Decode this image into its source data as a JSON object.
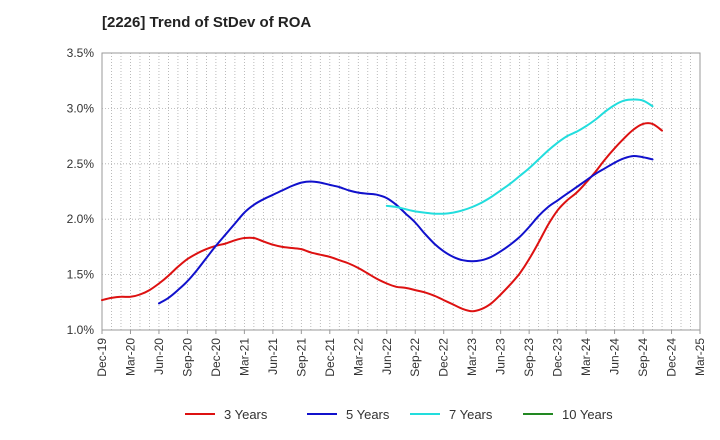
{
  "chart_data": {
    "type": "line",
    "title": "[2226]  Trend of StDev of ROA",
    "xlabel": "",
    "ylabel": "",
    "x_ticks": [
      "Dec-19",
      "Mar-20",
      "Jun-20",
      "Sep-20",
      "Dec-20",
      "Mar-21",
      "Jun-21",
      "Sep-21",
      "Dec-21",
      "Mar-22",
      "Jun-22",
      "Sep-22",
      "Dec-22",
      "Mar-23",
      "Jun-23",
      "Sep-23",
      "Dec-23",
      "Mar-24",
      "Jun-24",
      "Sep-24",
      "Dec-24",
      "Mar-25"
    ],
    "y_ticks": [
      "1.0%",
      "1.5%",
      "2.0%",
      "2.5%",
      "3.0%",
      "3.5%"
    ],
    "ylim": [
      1.0,
      3.5
    ],
    "grid": true,
    "legend_position": "bottom",
    "series": [
      {
        "name": "3 Years",
        "color": "#dd1111",
        "points": [
          [
            "Dec-19",
            1.27
          ],
          [
            "Jan-20",
            1.29
          ],
          [
            "Feb-20",
            1.3
          ],
          [
            "Mar-20",
            1.3
          ],
          [
            "Apr-20",
            1.32
          ],
          [
            "May-20",
            1.36
          ],
          [
            "Jun-20",
            1.42
          ],
          [
            "Jul-20",
            1.49
          ],
          [
            "Aug-20",
            1.57
          ],
          [
            "Sep-20",
            1.64
          ],
          [
            "Oct-20",
            1.69
          ],
          [
            "Nov-20",
            1.73
          ],
          [
            "Dec-20",
            1.76
          ],
          [
            "Jan-21",
            1.78
          ],
          [
            "Feb-21",
            1.81
          ],
          [
            "Mar-21",
            1.83
          ],
          [
            "Apr-21",
            1.83
          ],
          [
            "May-21",
            1.8
          ],
          [
            "Jun-21",
            1.77
          ],
          [
            "Jul-21",
            1.75
          ],
          [
            "Aug-21",
            1.74
          ],
          [
            "Sep-21",
            1.73
          ],
          [
            "Oct-21",
            1.7
          ],
          [
            "Nov-21",
            1.68
          ],
          [
            "Dec-21",
            1.66
          ],
          [
            "Jan-22",
            1.63
          ],
          [
            "Feb-22",
            1.6
          ],
          [
            "Mar-22",
            1.56
          ],
          [
            "Apr-22",
            1.51
          ],
          [
            "May-22",
            1.46
          ],
          [
            "Jun-22",
            1.42
          ],
          [
            "Jul-22",
            1.39
          ],
          [
            "Aug-22",
            1.38
          ],
          [
            "Sep-22",
            1.36
          ],
          [
            "Oct-22",
            1.34
          ],
          [
            "Nov-22",
            1.31
          ],
          [
            "Dec-22",
            1.27
          ],
          [
            "Jan-23",
            1.23
          ],
          [
            "Feb-23",
            1.19
          ],
          [
            "Mar-23",
            1.17
          ],
          [
            "Apr-23",
            1.19
          ],
          [
            "May-23",
            1.24
          ],
          [
            "Jun-23",
            1.32
          ],
          [
            "Jul-23",
            1.41
          ],
          [
            "Aug-23",
            1.51
          ],
          [
            "Sep-23",
            1.64
          ],
          [
            "Oct-23",
            1.79
          ],
          [
            "Nov-23",
            1.95
          ],
          [
            "Dec-23",
            2.08
          ],
          [
            "Jan-24",
            2.17
          ],
          [
            "Feb-24",
            2.24
          ],
          [
            "Mar-24",
            2.33
          ],
          [
            "Apr-24",
            2.43
          ],
          [
            "May-24",
            2.54
          ],
          [
            "Jun-24",
            2.64
          ],
          [
            "Jul-24",
            2.73
          ],
          [
            "Aug-24",
            2.81
          ],
          [
            "Sep-24",
            2.86
          ],
          [
            "Oct-24",
            2.86
          ],
          [
            "Nov-24",
            2.8
          ]
        ]
      },
      {
        "name": "5 Years",
        "color": "#1111cc",
        "points": [
          [
            "Jun-20",
            1.24
          ],
          [
            "Jul-20",
            1.29
          ],
          [
            "Aug-20",
            1.36
          ],
          [
            "Sep-20",
            1.44
          ],
          [
            "Oct-20",
            1.54
          ],
          [
            "Nov-20",
            1.65
          ],
          [
            "Dec-20",
            1.76
          ],
          [
            "Jan-21",
            1.86
          ],
          [
            "Feb-21",
            1.96
          ],
          [
            "Mar-21",
            2.06
          ],
          [
            "Apr-21",
            2.13
          ],
          [
            "May-21",
            2.18
          ],
          [
            "Jun-21",
            2.22
          ],
          [
            "Jul-21",
            2.26
          ],
          [
            "Aug-21",
            2.3
          ],
          [
            "Sep-21",
            2.33
          ],
          [
            "Oct-21",
            2.34
          ],
          [
            "Nov-21",
            2.33
          ],
          [
            "Dec-21",
            2.31
          ],
          [
            "Jan-22",
            2.29
          ],
          [
            "Feb-22",
            2.26
          ],
          [
            "Mar-22",
            2.24
          ],
          [
            "Apr-22",
            2.23
          ],
          [
            "May-22",
            2.22
          ],
          [
            "Jun-22",
            2.19
          ],
          [
            "Jul-22",
            2.13
          ],
          [
            "Aug-22",
            2.05
          ],
          [
            "Sep-22",
            1.97
          ],
          [
            "Oct-22",
            1.87
          ],
          [
            "Nov-22",
            1.78
          ],
          [
            "Dec-22",
            1.71
          ],
          [
            "Jan-23",
            1.66
          ],
          [
            "Feb-23",
            1.63
          ],
          [
            "Mar-23",
            1.62
          ],
          [
            "Apr-23",
            1.63
          ],
          [
            "May-23",
            1.66
          ],
          [
            "Jun-23",
            1.71
          ],
          [
            "Jul-23",
            1.77
          ],
          [
            "Aug-23",
            1.84
          ],
          [
            "Sep-23",
            1.93
          ],
          [
            "Oct-23",
            2.03
          ],
          [
            "Nov-23",
            2.11
          ],
          [
            "Dec-23",
            2.17
          ],
          [
            "Jan-24",
            2.23
          ],
          [
            "Feb-24",
            2.29
          ],
          [
            "Mar-24",
            2.35
          ],
          [
            "Apr-24",
            2.41
          ],
          [
            "May-24",
            2.46
          ],
          [
            "Jun-24",
            2.51
          ],
          [
            "Jul-24",
            2.55
          ],
          [
            "Aug-24",
            2.57
          ],
          [
            "Sep-24",
            2.56
          ],
          [
            "Oct-24",
            2.54
          ]
        ]
      },
      {
        "name": "7 Years",
        "color": "#22dddd",
        "points": [
          [
            "Jun-22",
            2.12
          ],
          [
            "Jul-22",
            2.11
          ],
          [
            "Aug-22",
            2.09
          ],
          [
            "Sep-22",
            2.07
          ],
          [
            "Oct-22",
            2.06
          ],
          [
            "Nov-22",
            2.05
          ],
          [
            "Dec-22",
            2.05
          ],
          [
            "Jan-23",
            2.06
          ],
          [
            "Feb-23",
            2.08
          ],
          [
            "Mar-23",
            2.11
          ],
          [
            "Apr-23",
            2.15
          ],
          [
            "May-23",
            2.2
          ],
          [
            "Jun-23",
            2.26
          ],
          [
            "Jul-23",
            2.32
          ],
          [
            "Aug-23",
            2.39
          ],
          [
            "Sep-23",
            2.46
          ],
          [
            "Oct-23",
            2.54
          ],
          [
            "Nov-23",
            2.62
          ],
          [
            "Dec-23",
            2.69
          ],
          [
            "Jan-24",
            2.75
          ],
          [
            "Feb-24",
            2.79
          ],
          [
            "Mar-24",
            2.84
          ],
          [
            "Apr-24",
            2.9
          ],
          [
            "May-24",
            2.97
          ],
          [
            "Jun-24",
            3.03
          ],
          [
            "Jul-24",
            3.07
          ],
          [
            "Aug-24",
            3.08
          ],
          [
            "Sep-24",
            3.07
          ],
          [
            "Oct-24",
            3.02
          ]
        ]
      },
      {
        "name": "10 Years",
        "color": "#228822",
        "points": []
      }
    ]
  }
}
